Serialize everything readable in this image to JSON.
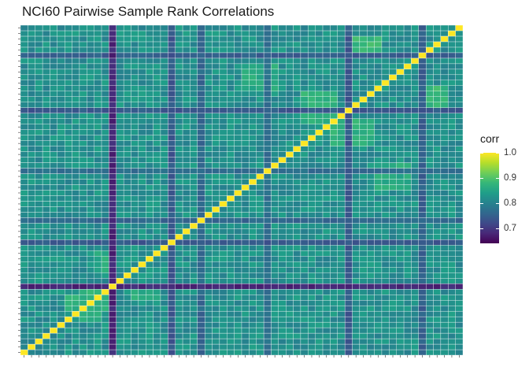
{
  "chart_data": {
    "type": "heatmap",
    "title": "NCI60 Pairwise Sample Rank Correlations",
    "xlabel": "",
    "ylabel": "",
    "n_samples": 60,
    "value_range": [
      0.64,
      1.0
    ],
    "diagonal_value": 1.0,
    "base_value": 0.82,
    "low_rows": [
      {
        "index": 12,
        "value": 0.68
      },
      {
        "index": 20,
        "value": 0.74
      },
      {
        "index": 24,
        "value": 0.76
      },
      {
        "index": 33,
        "value": 0.77
      },
      {
        "index": 44,
        "value": 0.74
      },
      {
        "index": 54,
        "value": 0.75
      }
    ],
    "high_blocks": [
      {
        "rows": [
          6,
          11
        ],
        "cols": [
          8,
          10
        ],
        "value": 0.87
      },
      {
        "rows": [
          10,
          12
        ],
        "cols": [
          15,
          18
        ],
        "value": 0.86
      },
      {
        "rows": [
          38,
          42
        ],
        "cols": [
          42,
          47
        ],
        "value": 0.87
      },
      {
        "rows": [
          44,
          48
        ],
        "cols": [
          54,
          57
        ],
        "value": 0.88
      },
      {
        "rows": [
          30,
          34
        ],
        "cols": [
          48,
          52
        ],
        "value": 0.86
      }
    ],
    "grid": true,
    "legend": {
      "title": "corr",
      "position": "right",
      "ticks": [
        1.0,
        0.9,
        0.8,
        0.7
      ],
      "tick_labels": [
        "1.0",
        "0.9",
        "0.8",
        "0.7"
      ],
      "colormap": "viridis"
    }
  },
  "colors": {
    "grid_line": "#ffffff",
    "viridis": [
      "#440154",
      "#482878",
      "#3e4989",
      "#31688e",
      "#26828e",
      "#1f9e89",
      "#35b779",
      "#6ece58",
      "#b5de2b",
      "#fde725"
    ]
  }
}
